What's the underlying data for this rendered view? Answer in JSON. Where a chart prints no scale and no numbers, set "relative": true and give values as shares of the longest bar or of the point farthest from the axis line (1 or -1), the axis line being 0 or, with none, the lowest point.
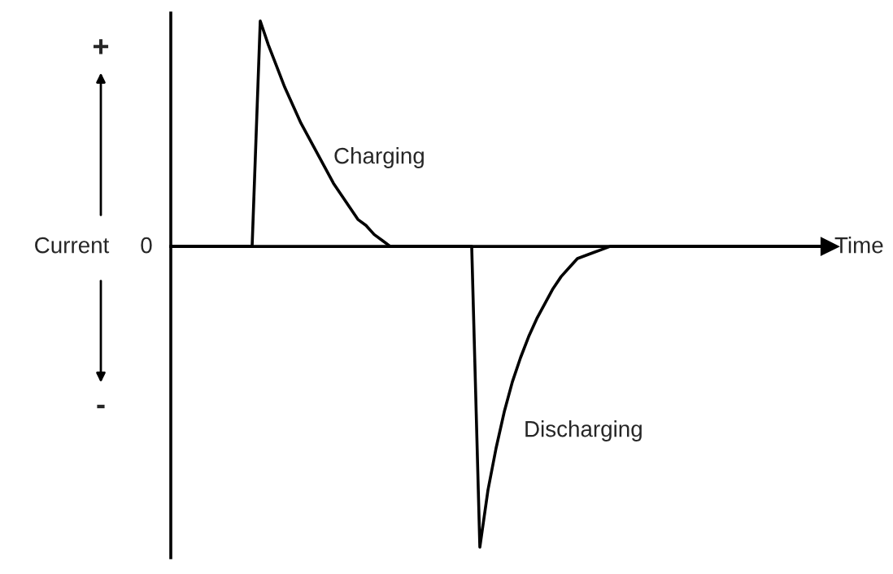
{
  "chart_data": {
    "type": "line",
    "relative": true,
    "xlabel": "Time",
    "ylabel": "Current",
    "categories": [
      null,
      null,
      null,
      null,
      null,
      null,
      null,
      null,
      null,
      null,
      null,
      null,
      null,
      null,
      null,
      null,
      null,
      null,
      null,
      null,
      null,
      null,
      null,
      null,
      null,
      null,
      null,
      null,
      null,
      null,
      null,
      null,
      null,
      null,
      null,
      null,
      null,
      null,
      null,
      null,
      null,
      null,
      null,
      null,
      null,
      null,
      null,
      null,
      null,
      null,
      null,
      null,
      null,
      null,
      null,
      null,
      null,
      null,
      null,
      null,
      null,
      null,
      null,
      null,
      null,
      null,
      null,
      null,
      null,
      null,
      null,
      null,
      null,
      null,
      null,
      null,
      null,
      null,
      null,
      null,
      null,
      null
    ],
    "series": [
      {
        "color": "#000000",
        "values": [
          0,
          0,
          0,
          0,
          0,
          0,
          0,
          0,
          0,
          0,
          0,
          0.75,
          0.67,
          0.6,
          0.53,
          0.47,
          0.41,
          0.36,
          0.31,
          0.26,
          0.21,
          0.17,
          0.13,
          0.09,
          0.07,
          0.04,
          0.02,
          0,
          0,
          0,
          0,
          0,
          0,
          0,
          0,
          0,
          0,
          0,
          -1,
          -0.81,
          -0.67,
          -0.55,
          -0.45,
          -0.37,
          -0.3,
          -0.24,
          -0.19,
          -0.14,
          -0.1,
          -0.07,
          -0.04,
          -0.03,
          -0.02,
          -0.01,
          0,
          0,
          0,
          0,
          0,
          0,
          0,
          0,
          0,
          0,
          0,
          0,
          0,
          0,
          0,
          0,
          0,
          0,
          0,
          0,
          0,
          0,
          0,
          0,
          0,
          0,
          0,
          0
        ]
      }
    ],
    "annotations": [
      "Charging",
      "Discharging",
      "+",
      "-",
      "0"
    ]
  }
}
